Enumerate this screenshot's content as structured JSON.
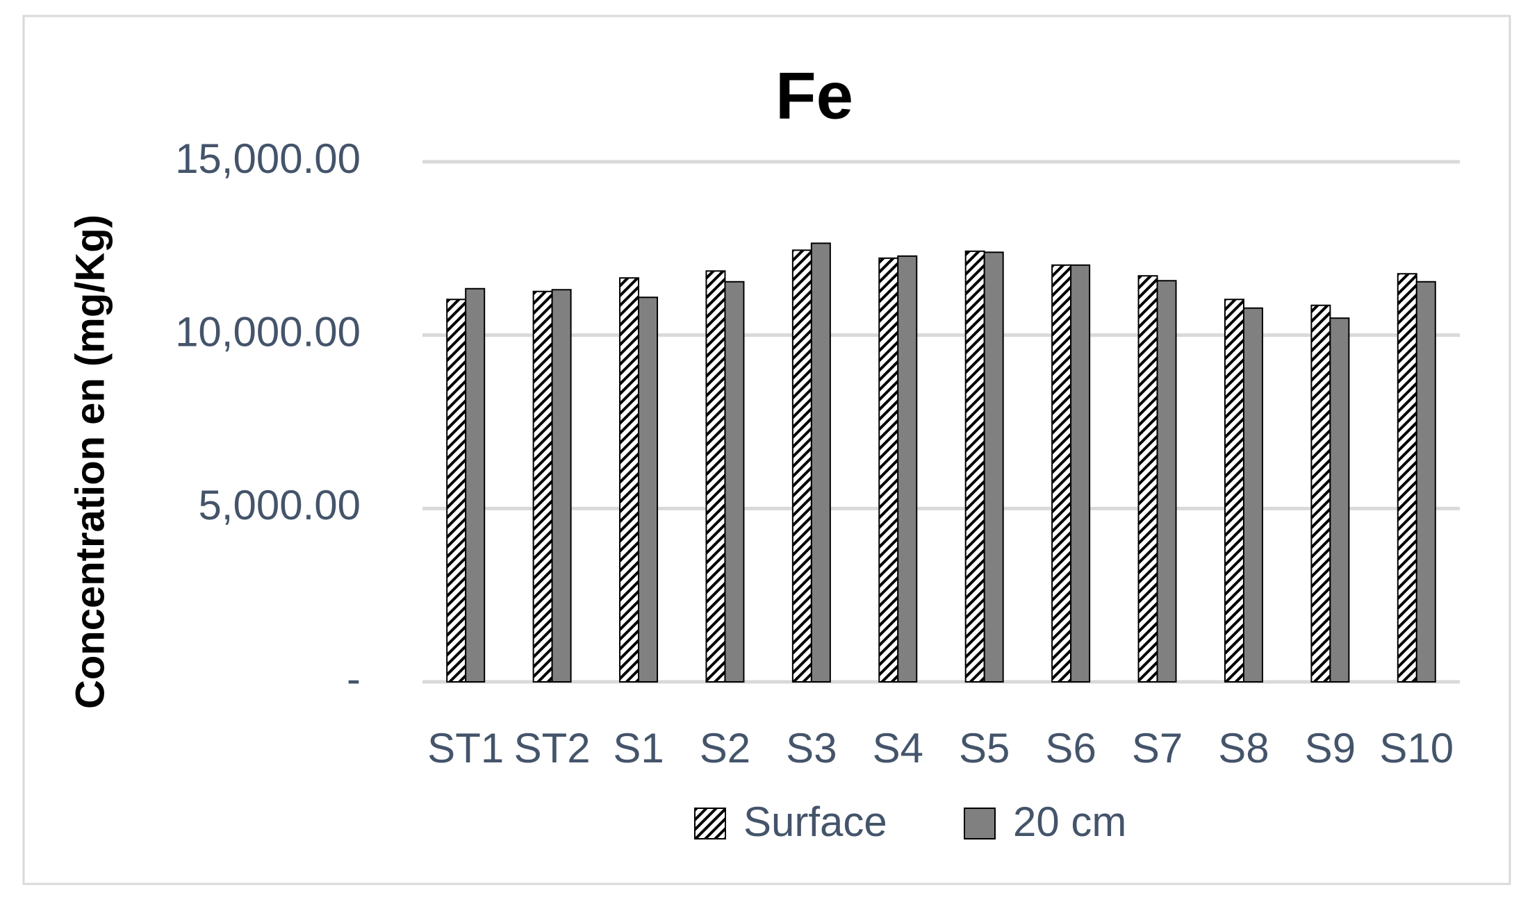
{
  "chart_data": {
    "type": "bar",
    "title": "Fe",
    "y_label": "Concentration en (mg/Kg)",
    "categories": [
      "ST1",
      "ST2",
      "S1",
      "S2",
      "S3",
      "S4",
      "S5",
      "S6",
      "S7",
      "S8",
      "S9",
      "S10"
    ],
    "series": [
      {
        "name": "Surface",
        "color": "#ffffff",
        "pattern": "diagonal-hatch",
        "values": [
          11030,
          11260,
          11650,
          11850,
          12450,
          12220,
          12420,
          12020,
          11710,
          11030,
          10860,
          11770
        ]
      },
      {
        "name": "20 cm",
        "color": "#808080",
        "values": [
          11340,
          11310,
          11090,
          11540,
          12650,
          12280,
          12390,
          12020,
          11570,
          10780,
          10490,
          11540
        ]
      }
    ],
    "ylim": [
      0,
      15000
    ],
    "yticks": [
      {
        "value": 0,
        "label": "-"
      },
      {
        "value": 5000,
        "label": "5,000.00"
      },
      {
        "value": 10000,
        "label": "10,000.00"
      },
      {
        "value": 15000,
        "label": "15,000.00"
      }
    ],
    "grid": true,
    "legend": "bottom"
  }
}
